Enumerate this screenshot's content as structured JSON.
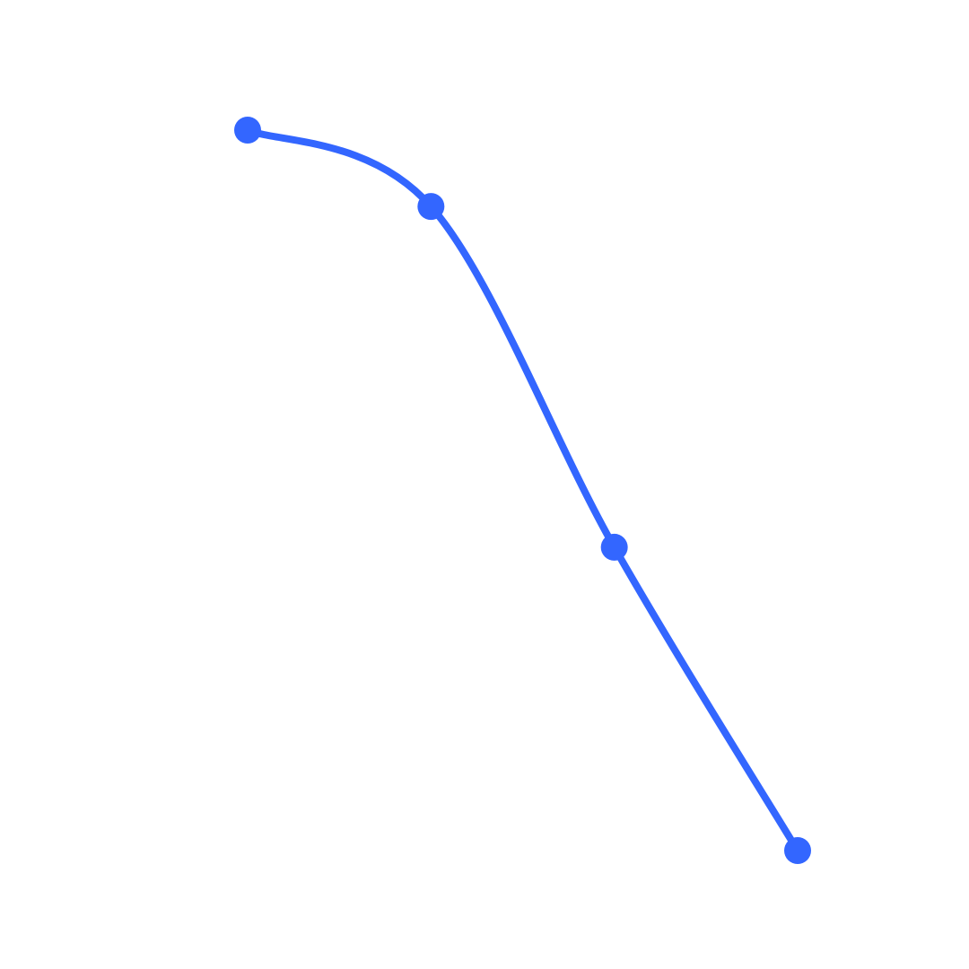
{
  "chart_data": {
    "type": "line",
    "title": "",
    "xlabel": "",
    "ylabel": "",
    "x": [
      0,
      1,
      2,
      3
    ],
    "series": [
      {
        "values": [
          100,
          89.4,
          42.1,
          0
        ],
        "color": "#3366ff"
      }
    ],
    "xlim": [
      0,
      3
    ],
    "ylim": [
      0,
      100
    ],
    "grid": false,
    "axes_visible": false,
    "smooth": true,
    "markers": true
  }
}
